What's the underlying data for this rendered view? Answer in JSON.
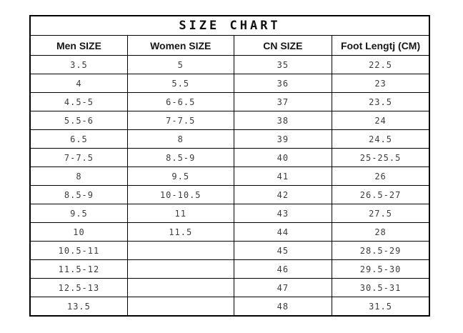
{
  "chart_data": {
    "type": "table",
    "title": "SIZE CHART",
    "columns": [
      {
        "id": "men-size",
        "label": "Men SIZE"
      },
      {
        "id": "women-size",
        "label": "Women SIZE"
      },
      {
        "id": "cn-size",
        "label": "CN SIZE"
      },
      {
        "id": "foot-length",
        "label": "Foot Lengtj (CM)"
      }
    ],
    "rows": [
      [
        "3.5",
        "5",
        "35",
        "22.5"
      ],
      [
        "4",
        "5.5",
        "36",
        "23"
      ],
      [
        "4.5-5",
        "6-6.5",
        "37",
        "23.5"
      ],
      [
        "5.5-6",
        "7-7.5",
        "38",
        "24"
      ],
      [
        "6.5",
        "8",
        "39",
        "24.5"
      ],
      [
        "7-7.5",
        "8.5-9",
        "40",
        "25-25.5"
      ],
      [
        "8",
        "9.5",
        "41",
        "26"
      ],
      [
        "8.5-9",
        "10-10.5",
        "42",
        "26.5-27"
      ],
      [
        "9.5",
        "11",
        "43",
        "27.5"
      ],
      [
        "10",
        "11.5",
        "44",
        "28"
      ],
      [
        "10.5-11",
        "",
        "45",
        "28.5-29"
      ],
      [
        "11.5-12",
        "",
        "46",
        "29.5-30"
      ],
      [
        "12.5-13",
        "",
        "47",
        "30.5-31"
      ],
      [
        "13.5",
        "",
        "48",
        "31.5"
      ]
    ],
    "layout": {
      "border_color": "#000000",
      "background": "#ffffff",
      "column_width_percent": [
        24.4,
        26.6,
        24.6,
        24.4
      ]
    }
  }
}
